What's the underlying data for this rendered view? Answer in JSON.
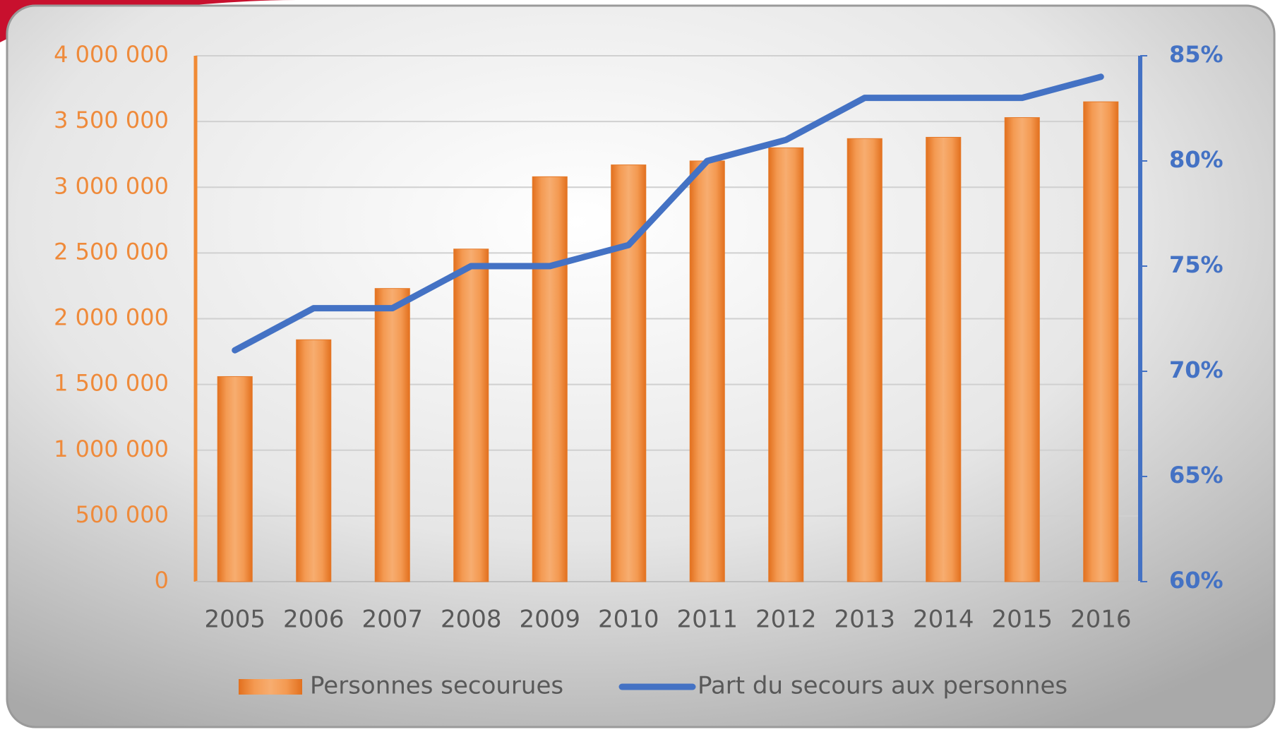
{
  "chart_data": {
    "type": "bar",
    "categories": [
      "2005",
      "2006",
      "2007",
      "2008",
      "2009",
      "2010",
      "2011",
      "2012",
      "2013",
      "2014",
      "2015",
      "2016"
    ],
    "series": [
      {
        "name": "Personnes secourues",
        "type": "bar",
        "color": "#f08a35",
        "values": [
          1560000,
          1840000,
          2230000,
          2530000,
          3080000,
          3170000,
          3200000,
          3300000,
          3370000,
          3380000,
          3530000,
          3650000
        ]
      },
      {
        "name": "Part du secours aux personnes",
        "type": "line",
        "axis": "y2",
        "color": "#4472c4",
        "values": [
          71,
          73,
          73,
          75,
          75,
          76,
          80,
          81,
          83,
          83,
          83,
          84
        ]
      }
    ],
    "ylim": [
      0,
      4000000
    ],
    "yticks": [
      0,
      {
        "value": 500000,
        "label": "500 000"
      },
      {
        "value": 1000000,
        "label": "1 000 000"
      },
      {
        "value": 1500000,
        "label": "1 500 000"
      },
      {
        "value": 2000000,
        "label": "2 000 000"
      },
      {
        "value": 2500000,
        "label": "2 500 000"
      },
      {
        "value": 3000000,
        "label": "3 000 000"
      },
      {
        "value": 3500000,
        "label": "3 500 000"
      },
      {
        "value": 4000000,
        "label": "4 000 000"
      }
    ],
    "y2lim": [
      60,
      85
    ],
    "y2ticks": [
      {
        "value": 60,
        "label": "60%"
      },
      {
        "value": 65,
        "label": "65%"
      },
      {
        "value": 70,
        "label": "70%"
      },
      {
        "value": 75,
        "label": "75%"
      },
      {
        "value": 80,
        "label": "80%"
      },
      {
        "value": 85,
        "label": "85%"
      }
    ],
    "grid": true,
    "legend": "bottom"
  }
}
